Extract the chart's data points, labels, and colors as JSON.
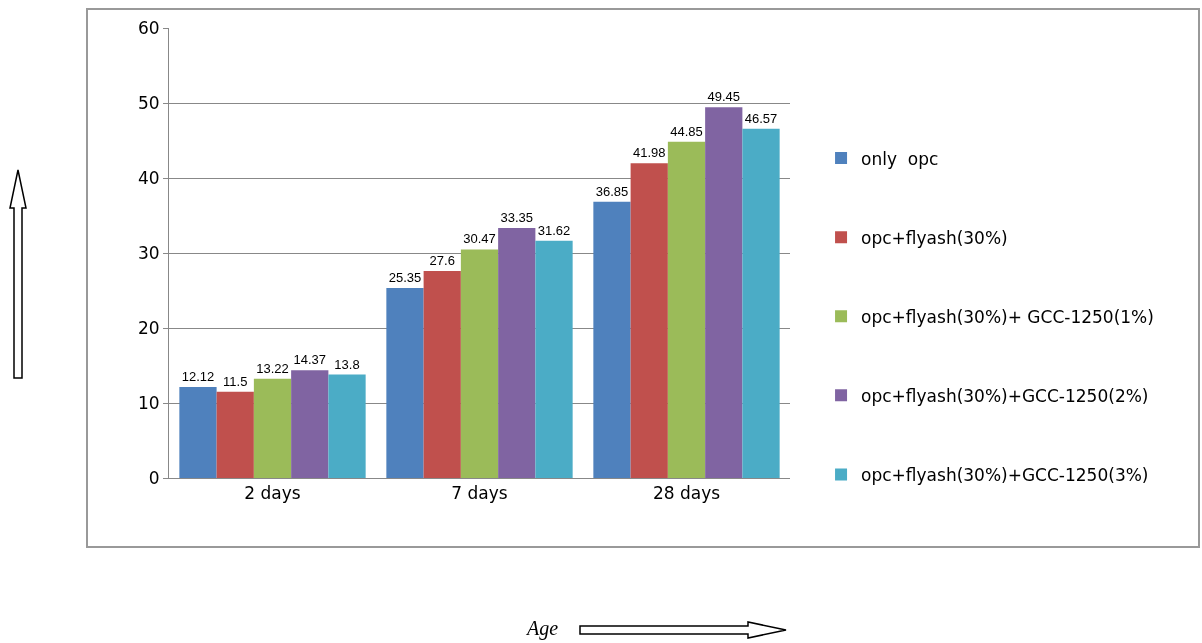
{
  "chart_data": {
    "type": "bar",
    "annotations": [
      "Age"
    ],
    "categories": [
      "2 days",
      "7 days",
      "28 days"
    ],
    "series": [
      {
        "name": "only  opc",
        "color": "#4f81bd",
        "values": [
          12.12,
          25.35,
          36.85
        ]
      },
      {
        "name": "opc+flyash(30%)",
        "color": "#c0504d",
        "values": [
          11.5,
          27.6,
          41.98
        ]
      },
      {
        "name": "opc+flyash(30%)+ GCC-1250(1%)",
        "color": "#9bbb59",
        "values": [
          13.22,
          30.47,
          44.85
        ]
      },
      {
        "name": "opc+flyash(30%)+GCC-1250(2%)",
        "color": "#8064a2",
        "values": [
          14.37,
          33.35,
          49.45
        ]
      },
      {
        "name": "opc+flyash(30%)+GCC-1250(3%)",
        "color": "#4bacc6",
        "values": [
          13.8,
          31.62,
          46.57
        ]
      }
    ],
    "ylim": [
      0,
      60
    ],
    "yticks": [
      0,
      10,
      20,
      30,
      40,
      50,
      60
    ],
    "grid": "y",
    "legend": "right",
    "data_labels": true
  }
}
